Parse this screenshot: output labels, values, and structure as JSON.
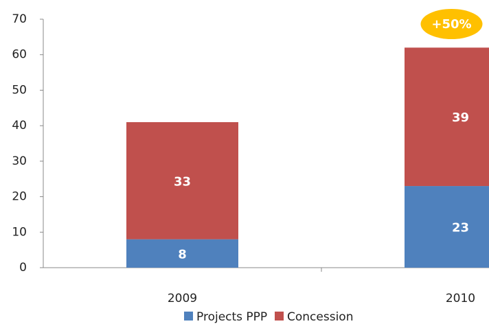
{
  "chart_data": {
    "type": "stacked_bar",
    "categories": [
      "2009",
      "2010"
    ],
    "series": [
      {
        "name": "Projects PPP",
        "color": "#4f81bd",
        "values": [
          8,
          23
        ]
      },
      {
        "name": "Concession",
        "color": "#c0504d",
        "values": [
          33,
          39
        ]
      }
    ],
    "ylim": [
      0,
      70
    ],
    "yticks": [
      0,
      10,
      20,
      30,
      40,
      50,
      60,
      70
    ],
    "annotations": [
      {
        "text": "+50%",
        "category": 1,
        "color": "#ffc000"
      }
    ],
    "legend": "bottom"
  }
}
